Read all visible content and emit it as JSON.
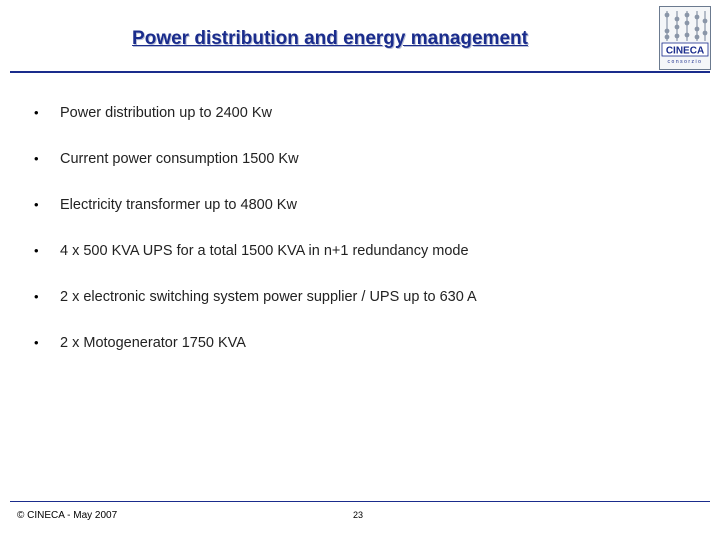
{
  "slide": {
    "title": "Power distribution and energy management",
    "bullet_symbol": "•",
    "bullets": [
      "Power distribution up to 2400  Kw",
      "Current power consumption 1500 Kw",
      "Electricity transformer up to 4800 Kw",
      "4 x 500 KVA UPS for a total 1500 KVA in n+1 redundancy mode",
      "2 x electronic switching system power supplier  / UPS up to 630 A",
      "2 x Motogenerator 1750 KVA"
    ]
  },
  "logo": {
    "name": "CINECA",
    "tagline": "consorzio"
  },
  "footer": {
    "copyright": "© CINECA - May  2007",
    "page_number": "23"
  },
  "colors": {
    "title": "#1a2c8c",
    "rule": "#1a2c8c",
    "text": "#222222"
  }
}
